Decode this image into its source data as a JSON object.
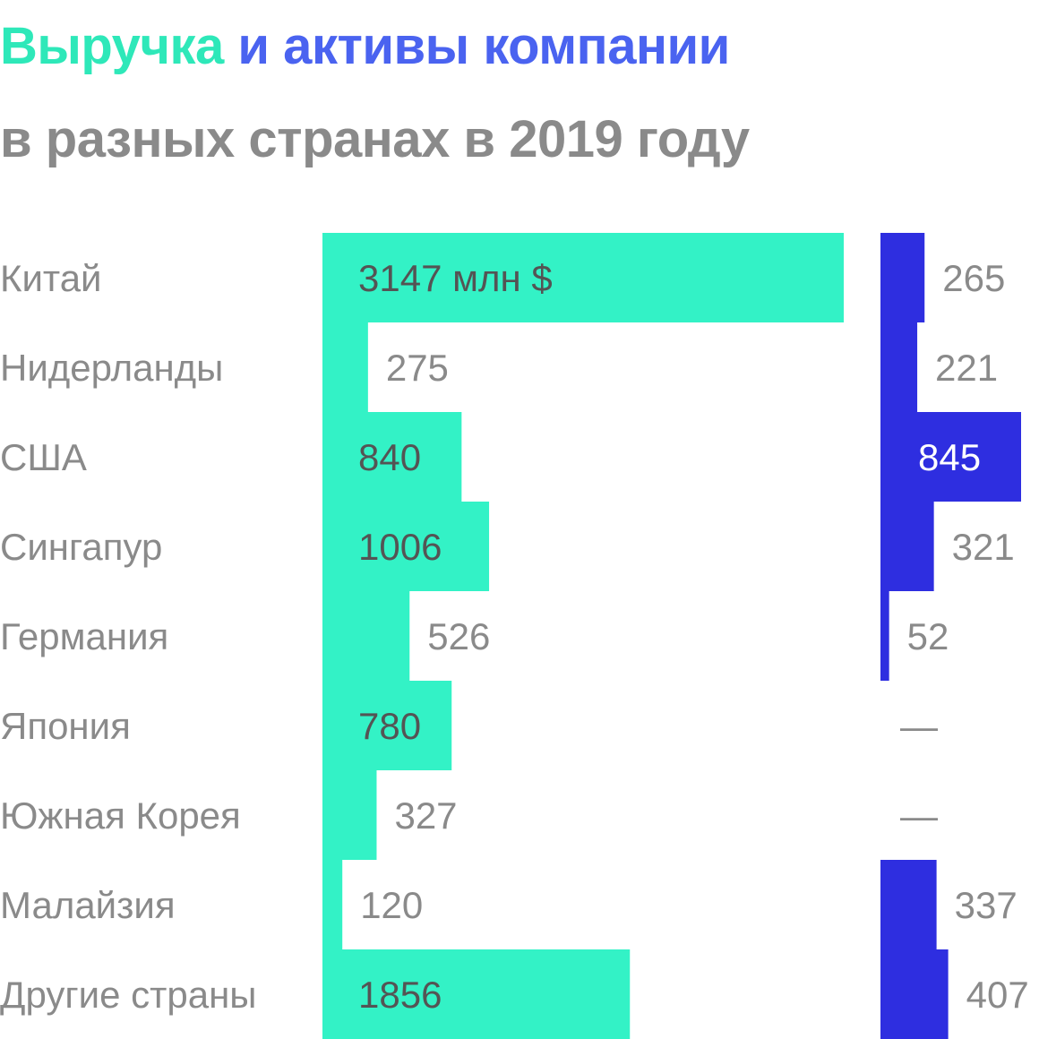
{
  "title": {
    "part1": "Выручка",
    "part2": " и активы компании",
    "line2": "в разных странах в 2019 году"
  },
  "colors": {
    "revenue": "#33f2c6",
    "assets": "#2e2ee0",
    "revenue_title": "#2ee8b9",
    "assets_title": "#4a63f0",
    "label": "#8a8a8a"
  },
  "chart_data": {
    "type": "bar",
    "unit_label": "млн $",
    "categories": [
      "Китай",
      "Нидерланды",
      "США",
      "Сингапур",
      "Германия",
      "Япония",
      "Южная Корея",
      "Малайзия",
      "Другие страны"
    ],
    "series": [
      {
        "name": "Выручка",
        "values": [
          3147,
          275,
          840,
          1006,
          526,
          780,
          327,
          120,
          1856
        ],
        "labels": [
          "3147 млн $",
          "275",
          "840",
          "1006",
          "526",
          "780",
          "327",
          "120",
          "1856"
        ]
      },
      {
        "name": "активы компании",
        "values": [
          265,
          221,
          845,
          321,
          52,
          null,
          null,
          337,
          407
        ],
        "labels": [
          "265",
          "221",
          "845",
          "321",
          "52",
          "—",
          "—",
          "337",
          "407"
        ]
      }
    ]
  }
}
